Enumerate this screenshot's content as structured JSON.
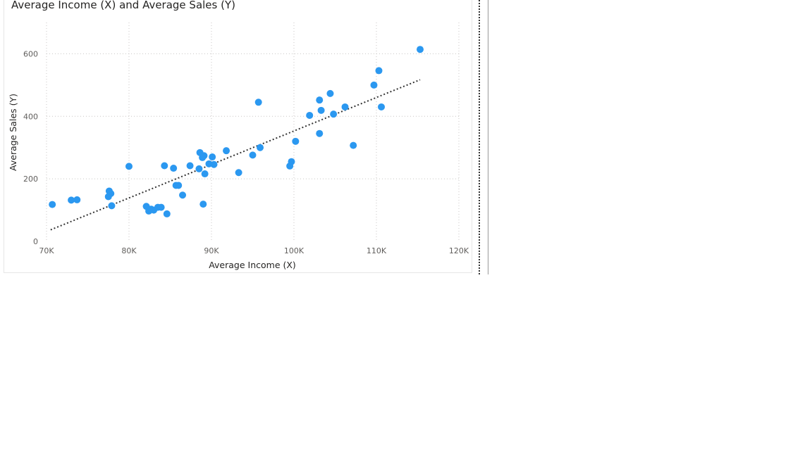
{
  "chart_data": {
    "type": "scatter",
    "title": "Average Income (X) and Average Sales (Y)",
    "xlabel": "Average Income (X)",
    "ylabel": "Average Sales (Y)",
    "xlim": [
      70000,
      120000
    ],
    "ylim": [
      0,
      700
    ],
    "x_ticks": [
      70000,
      80000,
      90000,
      100000,
      110000,
      120000
    ],
    "x_tick_labels": [
      "70K",
      "80K",
      "90K",
      "100K",
      "110K",
      "120K"
    ],
    "y_ticks": [
      0,
      200,
      400,
      600
    ],
    "y_tick_labels": [
      "0",
      "200",
      "400",
      "600"
    ],
    "grid": true,
    "point_color": "#2b98f0",
    "trend_color": "#333333",
    "trend_line": {
      "x": [
        70500,
        115300
      ],
      "y": [
        37,
        517
      ]
    },
    "points": [
      {
        "x": 70700,
        "y": 118
      },
      {
        "x": 73000,
        "y": 132
      },
      {
        "x": 73700,
        "y": 133
      },
      {
        "x": 77500,
        "y": 143
      },
      {
        "x": 77600,
        "y": 161
      },
      {
        "x": 77800,
        "y": 153
      },
      {
        "x": 77900,
        "y": 114
      },
      {
        "x": 80000,
        "y": 240
      },
      {
        "x": 82100,
        "y": 112
      },
      {
        "x": 82400,
        "y": 97
      },
      {
        "x": 82700,
        "y": 103
      },
      {
        "x": 83000,
        "y": 100
      },
      {
        "x": 83500,
        "y": 109
      },
      {
        "x": 83900,
        "y": 109
      },
      {
        "x": 84300,
        "y": 242
      },
      {
        "x": 84600,
        "y": 88
      },
      {
        "x": 85400,
        "y": 234
      },
      {
        "x": 85700,
        "y": 179
      },
      {
        "x": 86000,
        "y": 179
      },
      {
        "x": 86500,
        "y": 148
      },
      {
        "x": 87400,
        "y": 242
      },
      {
        "x": 88500,
        "y": 232
      },
      {
        "x": 88600,
        "y": 284
      },
      {
        "x": 88900,
        "y": 268
      },
      {
        "x": 89000,
        "y": 119
      },
      {
        "x": 89100,
        "y": 274
      },
      {
        "x": 89200,
        "y": 216
      },
      {
        "x": 89700,
        "y": 248
      },
      {
        "x": 90100,
        "y": 270
      },
      {
        "x": 90300,
        "y": 246
      },
      {
        "x": 91800,
        "y": 290
      },
      {
        "x": 93300,
        "y": 220
      },
      {
        "x": 95000,
        "y": 276
      },
      {
        "x": 95700,
        "y": 445
      },
      {
        "x": 95900,
        "y": 300
      },
      {
        "x": 99500,
        "y": 241
      },
      {
        "x": 99700,
        "y": 255
      },
      {
        "x": 100200,
        "y": 320
      },
      {
        "x": 101900,
        "y": 403
      },
      {
        "x": 103100,
        "y": 345
      },
      {
        "x": 103100,
        "y": 452
      },
      {
        "x": 103300,
        "y": 419
      },
      {
        "x": 104400,
        "y": 473
      },
      {
        "x": 104800,
        "y": 407
      },
      {
        "x": 106200,
        "y": 430
      },
      {
        "x": 107200,
        "y": 307
      },
      {
        "x": 109700,
        "y": 500
      },
      {
        "x": 110300,
        "y": 546
      },
      {
        "x": 110600,
        "y": 430
      },
      {
        "x": 115300,
        "y": 614
      }
    ]
  }
}
